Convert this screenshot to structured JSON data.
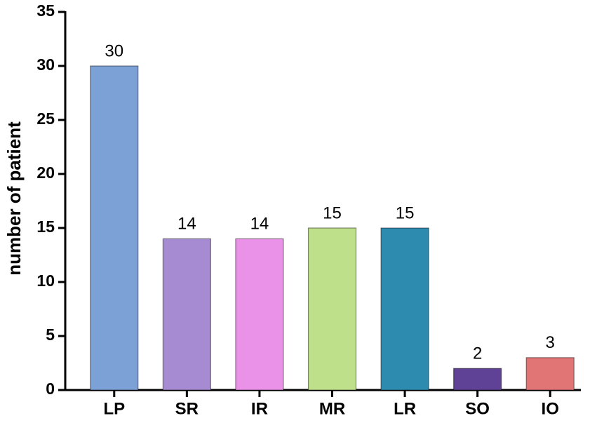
{
  "chart_data": {
    "type": "bar",
    "y_label": "number of patient",
    "categories": [
      "LP",
      "SR",
      "IR",
      "MR",
      "LR",
      "SO",
      "IO"
    ],
    "values": [
      30,
      14,
      14,
      15,
      15,
      2,
      3
    ],
    "colors": [
      "#7ba1d6",
      "#a68ad2",
      "#e992e8",
      "#bfe08a",
      "#2e8bb0",
      "#5f4195",
      "#e17576"
    ],
    "ylim": [
      0,
      35
    ],
    "yticks": [
      0,
      5,
      10,
      15,
      20,
      25,
      30,
      35
    ]
  }
}
